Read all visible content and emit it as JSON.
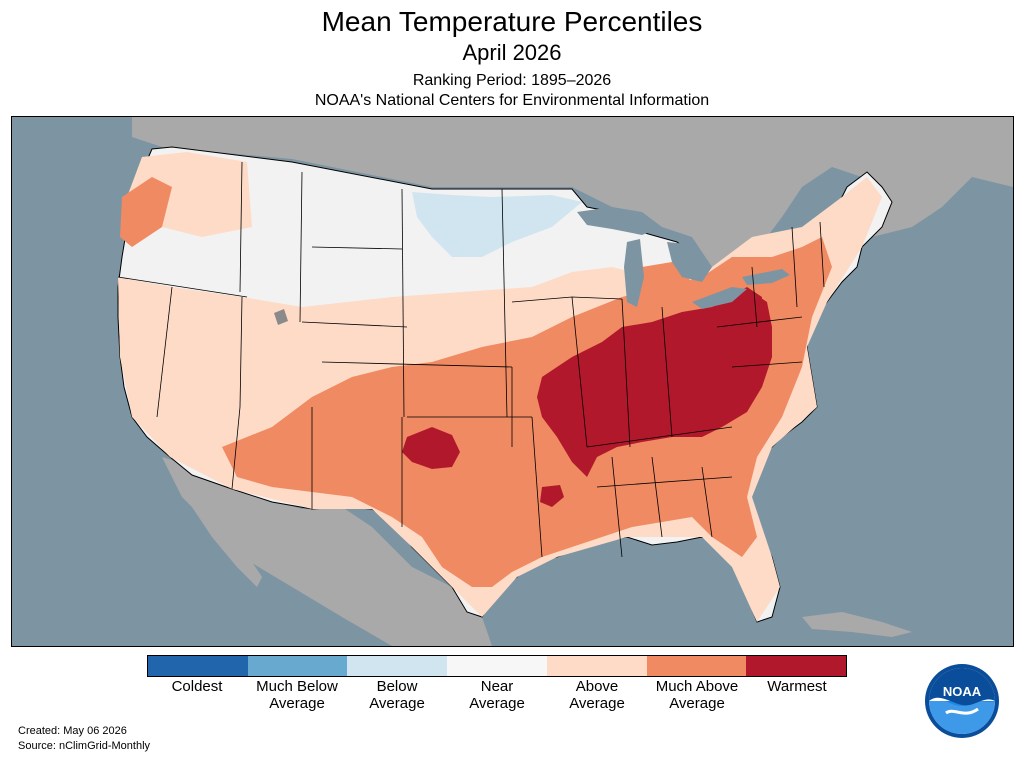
{
  "header": {
    "title": "Mean Temperature Percentiles",
    "subtitle": "April 2026",
    "ranking_period": "Ranking Period: 1895–2026",
    "source_org": "NOAA's National Centers for Environmental Information"
  },
  "legend": {
    "items": [
      {
        "label": "Coldest",
        "color": "#2166ac"
      },
      {
        "label": "Much Below\nAverage",
        "color": "#67a9cf"
      },
      {
        "label": "Below\nAverage",
        "color": "#d1e5f0"
      },
      {
        "label": "Near\nAverage",
        "color": "#f7f7f7"
      },
      {
        "label": "Above\nAverage",
        "color": "#fddbc7"
      },
      {
        "label": "Much Above\nAverage",
        "color": "#ef8a62"
      },
      {
        "label": "Warmest",
        "color": "#b2182b"
      }
    ]
  },
  "footer": {
    "created": "Created: May 06 2026",
    "source": "Source: nClimGrid-Monthly"
  },
  "logo": {
    "text": "NOAA"
  },
  "colors": {
    "ocean": "#7d95a2",
    "land_outside": "#a9a9a9",
    "near_average": "#f2f2f2",
    "below_average": "#d1e5f0",
    "above_average": "#fddbc7",
    "much_above_average": "#ef8a62",
    "warmest": "#b2182b"
  }
}
